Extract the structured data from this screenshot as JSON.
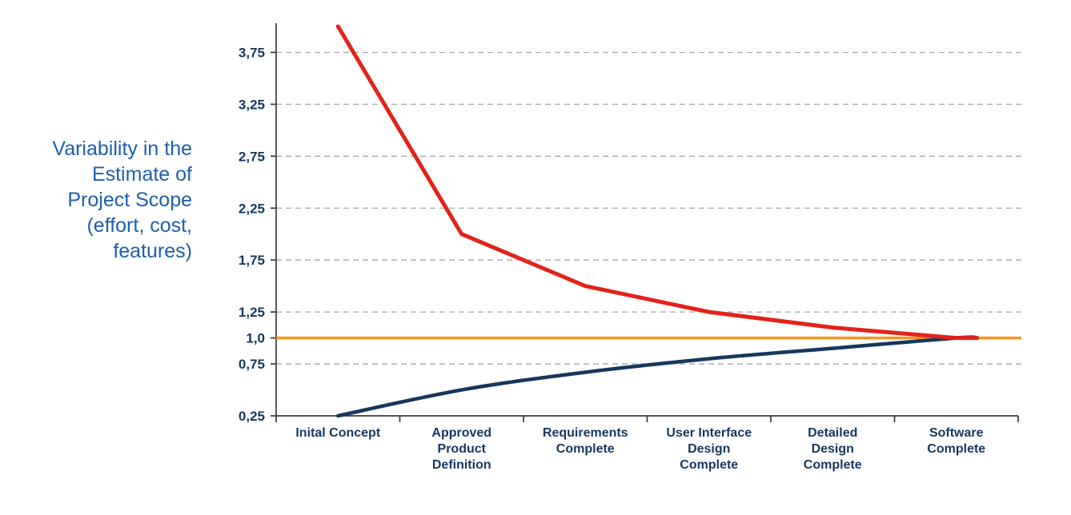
{
  "colors": {
    "title-text": "#1f5fa9",
    "axis-text": "#17375e",
    "axis-line": "#3a3a3a",
    "gridline": "#a9a9a9",
    "upper-line": "#e2231a",
    "lower-line": "#17375e",
    "baseline-line": "#f79421"
  },
  "chart_data": {
    "type": "line",
    "title": "",
    "ylabel_lines": [
      "Variability in the",
      "Estimate of",
      "Project Scope",
      "(effort, cost,",
      "features)"
    ],
    "categories": [
      "Inital Concept",
      "Approved Product Definition",
      "Requirements Complete",
      "User Interface Design Complete",
      "Detailed Design Complete",
      "Software Complete"
    ],
    "category_lines": [
      [
        "Inital Concept"
      ],
      [
        "Approved",
        "Product",
        "Definition"
      ],
      [
        "Requirements",
        "Complete"
      ],
      [
        "User Interface",
        "Design",
        "Complete"
      ],
      [
        "Detailed",
        "Design",
        "Complete"
      ],
      [
        "Software",
        "Complete"
      ]
    ],
    "series": [
      {
        "name": "upper-estimate",
        "color": "#e2231a",
        "values": [
          4.0,
          2.0,
          1.5,
          1.25,
          1.1,
          1.0
        ]
      },
      {
        "name": "lower-estimate",
        "color": "#17375e",
        "values": [
          0.25,
          0.5,
          0.67,
          0.8,
          0.9,
          1.0
        ]
      },
      {
        "name": "baseline",
        "color": "#f79421",
        "values": [
          1.0,
          1.0,
          1.0,
          1.0,
          1.0,
          1.0
        ]
      }
    ],
    "y_ticks": [
      0.25,
      0.75,
      1.0,
      1.25,
      1.75,
      2.25,
      2.75,
      3.25,
      3.75
    ],
    "y_tick_labels": [
      "0,25",
      "0,75",
      "1,0",
      "1,25",
      "1,75",
      "2,25",
      "2,75",
      "3,25",
      "3,75"
    ],
    "ylim": [
      0.25,
      4.0
    ],
    "grid": "dashed-horizontal",
    "legend": "none"
  }
}
